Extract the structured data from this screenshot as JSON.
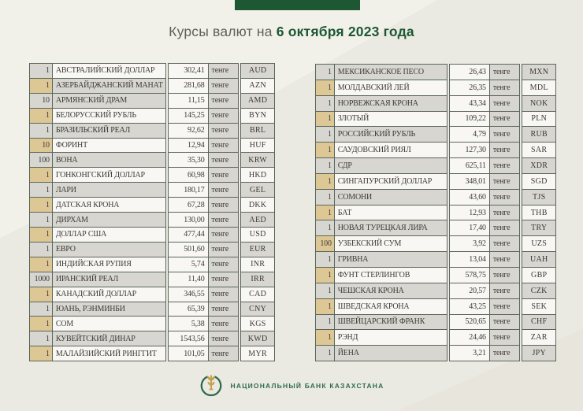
{
  "title": {
    "prefix": "Курсы валют на",
    "date": "6 октября 2023 года"
  },
  "tables": {
    "left": [
      {
        "qty": "1",
        "name": "АВСТРАЛИЙСКИЙ ДОЛЛАР",
        "rate": "302,41",
        "unit": "тенге",
        "code": "AUD"
      },
      {
        "qty": "1",
        "name": "АЗЕРБАЙДЖАНСКИЙ МАНАТ",
        "rate": "281,68",
        "unit": "тенге",
        "code": "AZN"
      },
      {
        "qty": "10",
        "name": "АРМЯНСКИЙ ДРАМ",
        "rate": "11,15",
        "unit": "тенге",
        "code": "AMD"
      },
      {
        "qty": "1",
        "name": "БЕЛОРУССКИЙ РУБЛЬ",
        "rate": "145,25",
        "unit": "тенге",
        "code": "BYN"
      },
      {
        "qty": "1",
        "name": "БРАЗИЛЬСКИЙ РЕАЛ",
        "rate": "92,62",
        "unit": "тенге",
        "code": "BRL"
      },
      {
        "qty": "10",
        "name": "ФОРИНТ",
        "rate": "12,94",
        "unit": "тенге",
        "code": "HUF"
      },
      {
        "qty": "100",
        "name": "ВОНА",
        "rate": "35,30",
        "unit": "тенге",
        "code": "KRW"
      },
      {
        "qty": "1",
        "name": "ГОНКОНГСКИЙ ДОЛЛАР",
        "rate": "60,98",
        "unit": "тенге",
        "code": "HKD"
      },
      {
        "qty": "1",
        "name": "ЛАРИ",
        "rate": "180,17",
        "unit": "тенге",
        "code": "GEL"
      },
      {
        "qty": "1",
        "name": "ДАТСКАЯ КРОНА",
        "rate": "67,28",
        "unit": "тенге",
        "code": "DKK"
      },
      {
        "qty": "1",
        "name": "ДИРХАМ",
        "rate": "130,00",
        "unit": "тенге",
        "code": "AED"
      },
      {
        "qty": "1",
        "name": "ДОЛЛАР США",
        "rate": "477,44",
        "unit": "тенге",
        "code": "USD"
      },
      {
        "qty": "1",
        "name": "ЕВРО",
        "rate": "501,60",
        "unit": "тенге",
        "code": "EUR"
      },
      {
        "qty": "1",
        "name": "ИНДИЙСКАЯ РУПИЯ",
        "rate": "5,74",
        "unit": "тенге",
        "code": "INR"
      },
      {
        "qty": "1000",
        "name": "ИРАНСКИЙ РЕАЛ",
        "rate": "11,40",
        "unit": "тенге",
        "code": "IRR"
      },
      {
        "qty": "1",
        "name": "КАНАДСКИЙ ДОЛЛАР",
        "rate": "346,55",
        "unit": "тенге",
        "code": "CAD"
      },
      {
        "qty": "1",
        "name": "ЮАНЬ, РЭНМИНБИ",
        "rate": "65,39",
        "unit": "тенге",
        "code": "CNY"
      },
      {
        "qty": "1",
        "name": "СОМ",
        "rate": "5,38",
        "unit": "тенге",
        "code": "KGS"
      },
      {
        "qty": "1",
        "name": "КУВЕЙТСКИЙ ДИНАР",
        "rate": "1543,56",
        "unit": "тенге",
        "code": "KWD"
      },
      {
        "qty": "1",
        "name": "МАЛАЙЗИЙСКИЙ РИНГГИТ",
        "rate": "101,05",
        "unit": "тенге",
        "code": "MYR"
      }
    ],
    "right": [
      {
        "qty": "1",
        "name": "МЕКСИКАНСКОЕ ПЕСО",
        "rate": "26,43",
        "unit": "тенге",
        "code": "MXN"
      },
      {
        "qty": "1",
        "name": "МОЛДАВСКИЙ ЛЕЙ",
        "rate": "26,35",
        "unit": "тенге",
        "code": "MDL"
      },
      {
        "qty": "1",
        "name": "НОРВЕЖСКАЯ КРОНА",
        "rate": "43,34",
        "unit": "тенге",
        "code": "NOK"
      },
      {
        "qty": "1",
        "name": "ЗЛОТЫЙ",
        "rate": "109,22",
        "unit": "тенге",
        "code": "PLN"
      },
      {
        "qty": "1",
        "name": "РОССИЙСКИЙ РУБЛЬ",
        "rate": "4,79",
        "unit": "тенге",
        "code": "RUB"
      },
      {
        "qty": "1",
        "name": "САУДОВСКИЙ РИЯЛ",
        "rate": "127,30",
        "unit": "тенге",
        "code": "SAR"
      },
      {
        "qty": "1",
        "name": "СДР",
        "rate": "625,11",
        "unit": "тенге",
        "code": "XDR"
      },
      {
        "qty": "1",
        "name": "СИНГАПУРСКИЙ ДОЛЛАР",
        "rate": "348,01",
        "unit": "тенге",
        "code": "SGD"
      },
      {
        "qty": "1",
        "name": "СОМОНИ",
        "rate": "43,60",
        "unit": "тенге",
        "code": "TJS"
      },
      {
        "qty": "1",
        "name": "БАТ",
        "rate": "12,93",
        "unit": "тенге",
        "code": "THB"
      },
      {
        "qty": "1",
        "name": "НОВАЯ ТУРЕЦКАЯ ЛИРА",
        "rate": "17,40",
        "unit": "тенге",
        "code": "TRY"
      },
      {
        "qty": "100",
        "name": "УЗБЕКСКИЙ СУМ",
        "rate": "3,92",
        "unit": "тенге",
        "code": "UZS"
      },
      {
        "qty": "1",
        "name": "ГРИВНА",
        "rate": "13,04",
        "unit": "тенге",
        "code": "UAH"
      },
      {
        "qty": "1",
        "name": "ФУНТ СТЕРЛИНГОВ",
        "rate": "578,75",
        "unit": "тенге",
        "code": "GBP"
      },
      {
        "qty": "1",
        "name": "ЧЕШСКАЯ КРОНА",
        "rate": "20,57",
        "unit": "тенге",
        "code": "CZK"
      },
      {
        "qty": "1",
        "name": "ШВЕДСКАЯ КРОНА",
        "rate": "43,25",
        "unit": "тенге",
        "code": "SEK"
      },
      {
        "qty": "1",
        "name": "ШВЕЙЦАРСКИЙ ФРАНК",
        "rate": "520,65",
        "unit": "тенге",
        "code": "CHF"
      },
      {
        "qty": "1",
        "name": "РЭНД",
        "rate": "24,46",
        "unit": "тенге",
        "code": "ZAR"
      },
      {
        "qty": "1",
        "name": "ЙЕНА",
        "rate": "3,21",
        "unit": "тенге",
        "code": "JPY"
      }
    ]
  },
  "footer": {
    "bank_name": "НАЦИОНАЛЬНЫЙ БАНК КАЗАХСТАНА",
    "logo": "national-bank-of-kazakhstan-emblem"
  },
  "colors": {
    "accent_green": "#1d5733",
    "footer_green": "#2e6b4b",
    "emblem_gold": "#c2a24e",
    "cell_white": "#f8f7f3",
    "cell_grey": "#d7d6d1",
    "cell_tan": "#ddc795",
    "cell_border": "#5a665a",
    "page_background": "#ebeae2"
  }
}
